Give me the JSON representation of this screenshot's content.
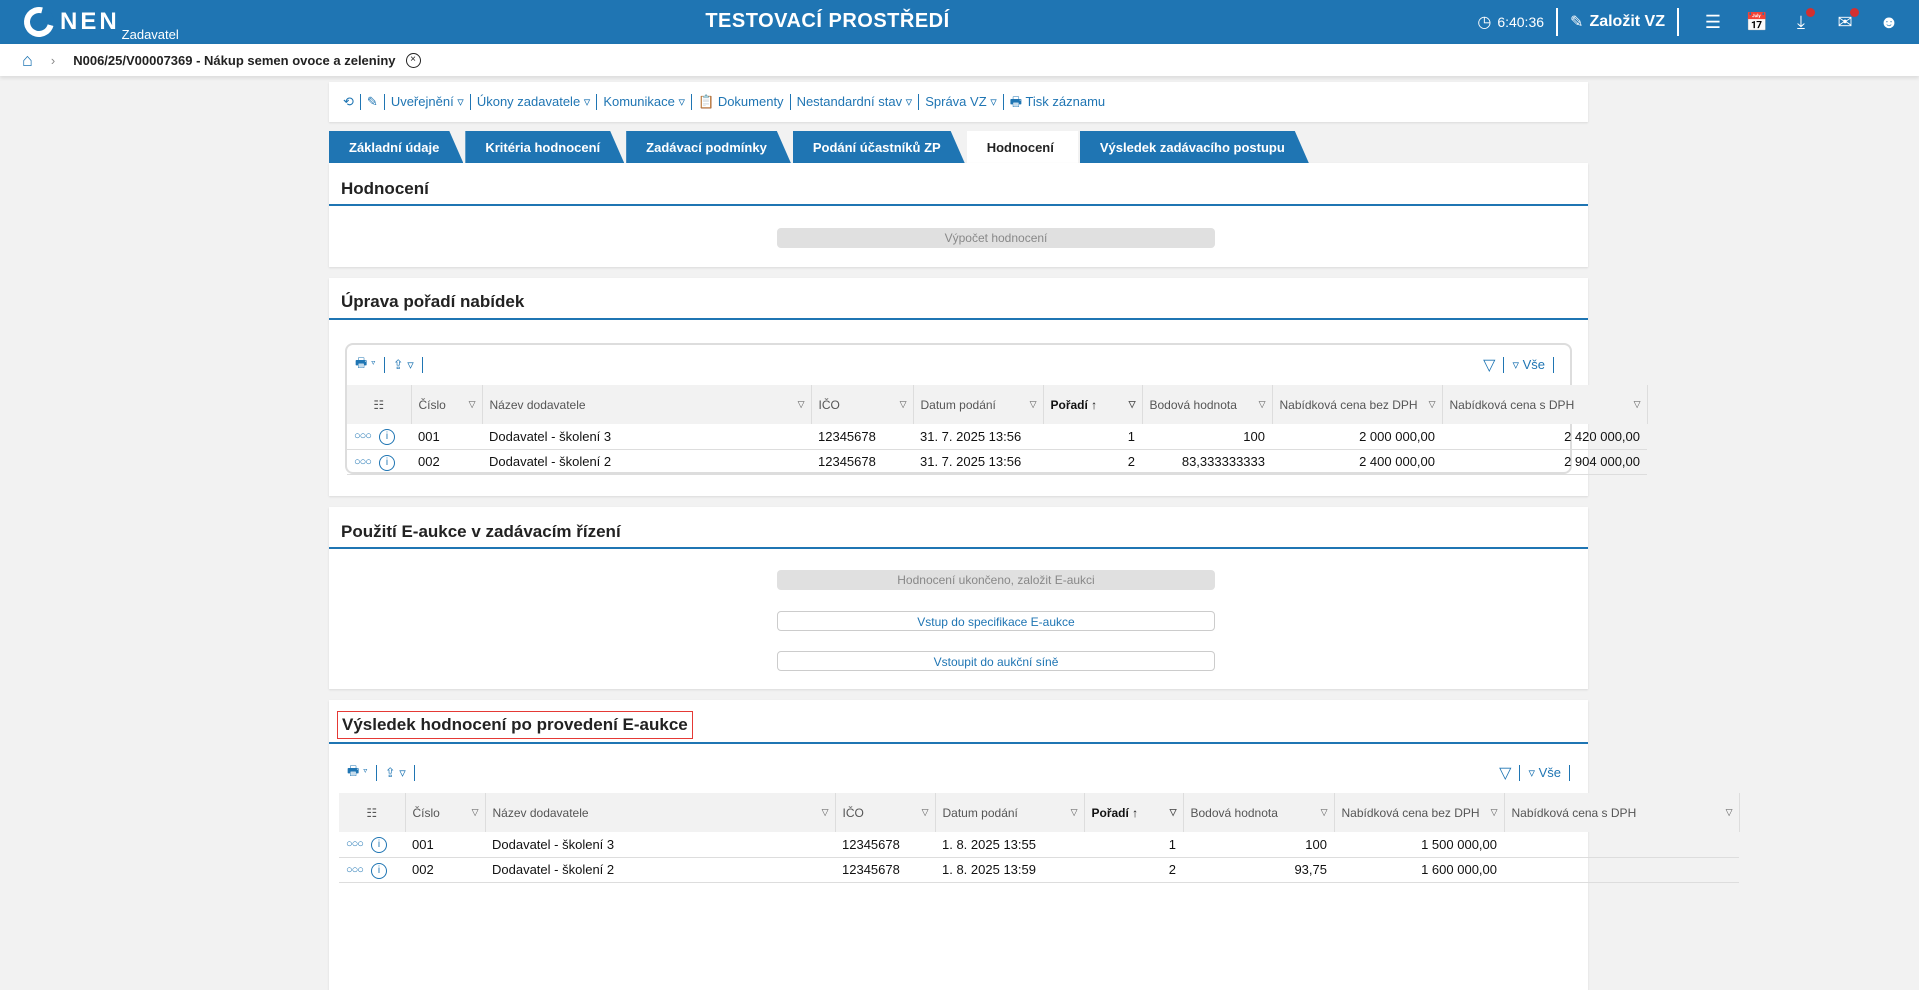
{
  "header": {
    "logo": "NEN",
    "logo_sub": "Zadavatel",
    "env_title": "TESTOVACÍ PROSTŘEDÍ",
    "time": "6:40:36",
    "create_label": "Založit VZ",
    "accent": "#1f75b3"
  },
  "breadcrumb": {
    "title": "N006/25/V00007369 - Nákup semen ovoce a zeleniny"
  },
  "toolbar": [
    "Uveřejnění ▿",
    "Úkony zadavatele ▿",
    "Komunikace ▿",
    "Dokumenty",
    "Nestandardní stav ▿",
    "Správa VZ ▿",
    "Tisk záznamu"
  ],
  "tabs": [
    "Základní údaje",
    "Kritéria hodnocení",
    "Zadávací podmínky",
    "Podání účastníků ZP",
    "Hodnocení",
    "Výsledek zadávacího postupu"
  ],
  "active_tab": "Hodnocení",
  "hodnoceni": {
    "title": "Hodnocení",
    "button": "Výpočet hodnocení"
  },
  "uprava": {
    "title": "Úprava pořadí nabídek",
    "all_label": "Vše",
    "columns": [
      "Číslo",
      "Název dodavatele",
      "IČO",
      "Datum podání",
      "Pořadí",
      "Bodová hodnota",
      "Nabídková cena bez DPH",
      "Nabídková cena s DPH"
    ],
    "rows": [
      [
        "001",
        "Dodavatel - školení 3",
        "12345678",
        "31. 7. 2025 13:56",
        "1",
        "100",
        "2 000 000,00",
        "2 420 000,00"
      ],
      [
        "002",
        "Dodavatel - školení 2",
        "12345678",
        "31. 7. 2025 13:56",
        "2",
        "83,333333333",
        "2 400 000,00",
        "2 904 000,00"
      ]
    ]
  },
  "eaukce": {
    "title": "Použití E-aukce v zadávacím řízení",
    "buttons": [
      "Hodnocení ukončeno, založit E-aukci",
      "Vstup do specifikace E-aukce",
      "Vstoupit do aukční síně"
    ]
  },
  "vysledek": {
    "title": "Výsledek hodnocení po provedení E-aukce",
    "all_label": "Vše",
    "columns": [
      "Číslo",
      "Název dodavatele",
      "IČO",
      "Datum podání",
      "Pořadí",
      "Bodová hodnota",
      "Nabídková cena bez DPH",
      "Nabídková cena s DPH"
    ],
    "rows": [
      [
        "001",
        "Dodavatel - školení 3",
        "12345678",
        "1. 8. 2025 13:55",
        "1",
        "100",
        "1 500 000,00",
        ""
      ],
      [
        "002",
        "Dodavatel - školení 2",
        "12345678",
        "1. 8. 2025 13:59",
        "2",
        "93,75",
        "1 600 000,00",
        ""
      ]
    ]
  }
}
